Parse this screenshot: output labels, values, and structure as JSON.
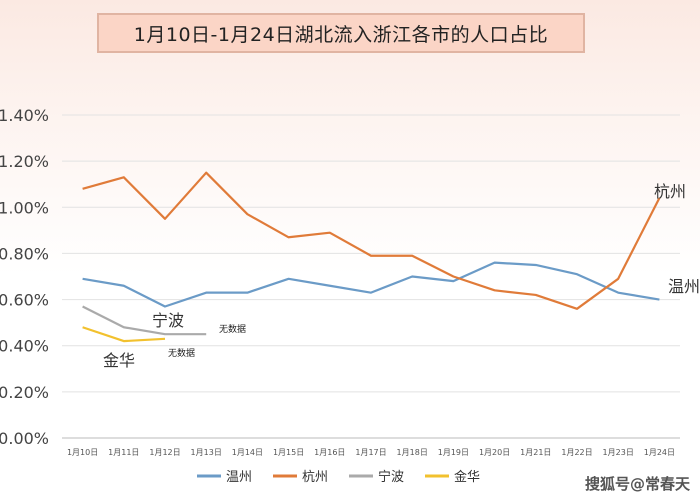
{
  "chart_data": {
    "type": "line",
    "title": "1月10日-1月24日湖北流入浙江各市的人口占比",
    "categories": [
      "1月10日",
      "1月11日",
      "1月12日",
      "1月13日",
      "1月14日",
      "1月15日",
      "1月16日",
      "1月17日",
      "1月18日",
      "1月19日",
      "1月20日",
      "1月21日",
      "1月22日",
      "1月23日",
      "1月24日"
    ],
    "ylim": [
      0,
      1.4
    ],
    "yticks": [
      "0.00%",
      "0.20%",
      "0.40%",
      "0.60%",
      "0.80%",
      "1.00%",
      "1.20%",
      "1.40%"
    ],
    "grid": true,
    "legend_position": "bottom",
    "series": [
      {
        "name": "温州",
        "color": "#6b9bc7",
        "values": [
          0.69,
          0.66,
          0.57,
          0.63,
          0.63,
          0.69,
          0.66,
          0.63,
          0.7,
          0.68,
          0.76,
          0.75,
          0.71,
          0.63,
          0.6
        ]
      },
      {
        "name": "杭州",
        "color": "#e07b39",
        "values": [
          1.08,
          1.13,
          0.95,
          1.15,
          0.97,
          0.87,
          0.89,
          0.79,
          0.79,
          0.7,
          0.64,
          0.62,
          0.56,
          0.69,
          1.04
        ]
      },
      {
        "name": "宁波",
        "color": "#aaaaaa",
        "values": [
          0.57,
          0.48,
          0.45,
          0.45,
          null,
          null,
          null,
          null,
          null,
          null,
          null,
          null,
          null,
          null,
          null
        ]
      },
      {
        "name": "金华",
        "color": "#f2c12e",
        "values": [
          0.48,
          0.42,
          0.43,
          null,
          null,
          null,
          null,
          null,
          null,
          null,
          null,
          null,
          null,
          null,
          null
        ]
      }
    ],
    "annotations": [
      "杭州",
      "温州",
      "宁波",
      "金华",
      "无数据",
      "无数据"
    ]
  },
  "watermark": "搜狐号@常春天"
}
